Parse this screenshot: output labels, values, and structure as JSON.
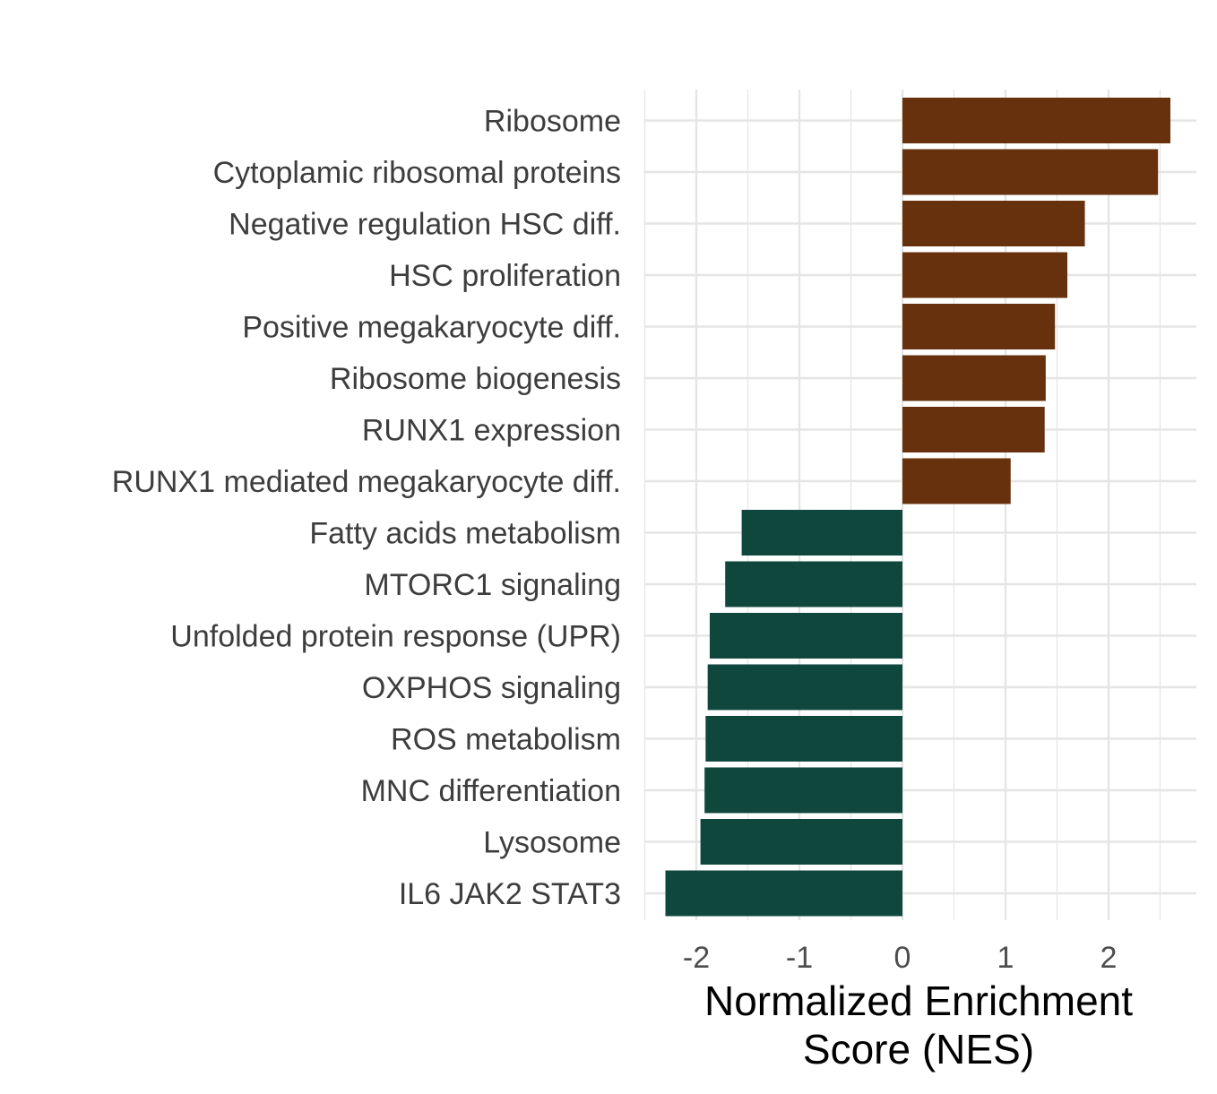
{
  "chart_data": {
    "type": "bar",
    "orientation": "horizontal",
    "xlabel": [
      "Normalized Enrichment",
      "Score (NES)"
    ],
    "ylabel": "",
    "xlim": [
      -2.5,
      2.85
    ],
    "xticks": [
      -2,
      -1,
      0,
      1,
      2
    ],
    "grid": true,
    "legend": "none",
    "colors": {
      "positive": "#67310d",
      "negative": "#10473d",
      "grid": "#e5e5e5"
    },
    "categories": [
      "Ribosome",
      "Cytoplamic ribosomal proteins",
      "Negative regulation HSC diff.",
      "HSC proliferation",
      "Positive megakaryocyte diff.",
      "Ribosome biogenesis",
      "RUNX1 expression",
      "RUNX1 mediated megakaryocyte diff.",
      "Fatty acids metabolism",
      "MTORC1 signaling",
      "Unfolded protein response (UPR)",
      "OXPHOS signaling",
      "ROS metabolism",
      "MNC differentiation",
      "Lysosome",
      "IL6 JAK2 STAT3"
    ],
    "values": [
      2.6,
      2.48,
      1.77,
      1.6,
      1.48,
      1.39,
      1.38,
      1.05,
      -1.56,
      -1.72,
      -1.87,
      -1.89,
      -1.91,
      -1.92,
      -1.96,
      -2.3
    ]
  }
}
